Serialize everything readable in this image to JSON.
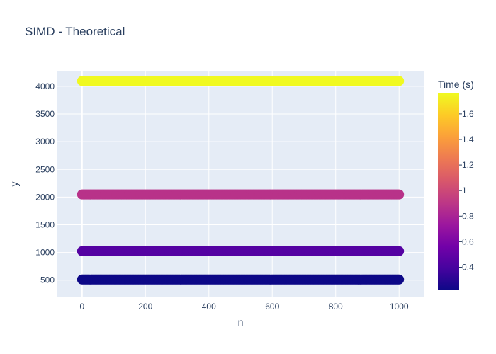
{
  "chart_data": {
    "type": "scatter",
    "title": "SIMD - Theoretical",
    "xlabel": "n",
    "ylabel": "y",
    "xlim": [
      -80,
      1080
    ],
    "ylim": [
      190,
      4280
    ],
    "x_ticks": [
      0,
      200,
      400,
      600,
      800,
      1000
    ],
    "y_ticks": [
      500,
      1000,
      1500,
      2000,
      2500,
      3000,
      3500,
      4000
    ],
    "grid": true,
    "point_x_range": [
      0,
      1000
    ],
    "series": [
      {
        "y": 512,
        "time_s": 0.22
      },
      {
        "y": 1024,
        "time_s": 0.45
      },
      {
        "y": 2048,
        "time_s": 0.88
      },
      {
        "y": 4096,
        "time_s": 1.76
      }
    ],
    "colorbar": {
      "title": "Time (s)",
      "min": 0.22,
      "max": 1.76,
      "ticks": [
        "0.4",
        "0.6",
        "0.8",
        "1",
        "1.2",
        "1.4",
        "1.6"
      ],
      "colorscale": [
        "#0d0887",
        "#46039f",
        "#7201a8",
        "#9c179e",
        "#bd3786",
        "#d8576b",
        "#ed7953",
        "#fb9f3a",
        "#fdca26",
        "#f0f921"
      ]
    },
    "plot_bg": "#e5ecf6",
    "grid_color": "#ffffff",
    "text_color": "#2a3f5f"
  }
}
